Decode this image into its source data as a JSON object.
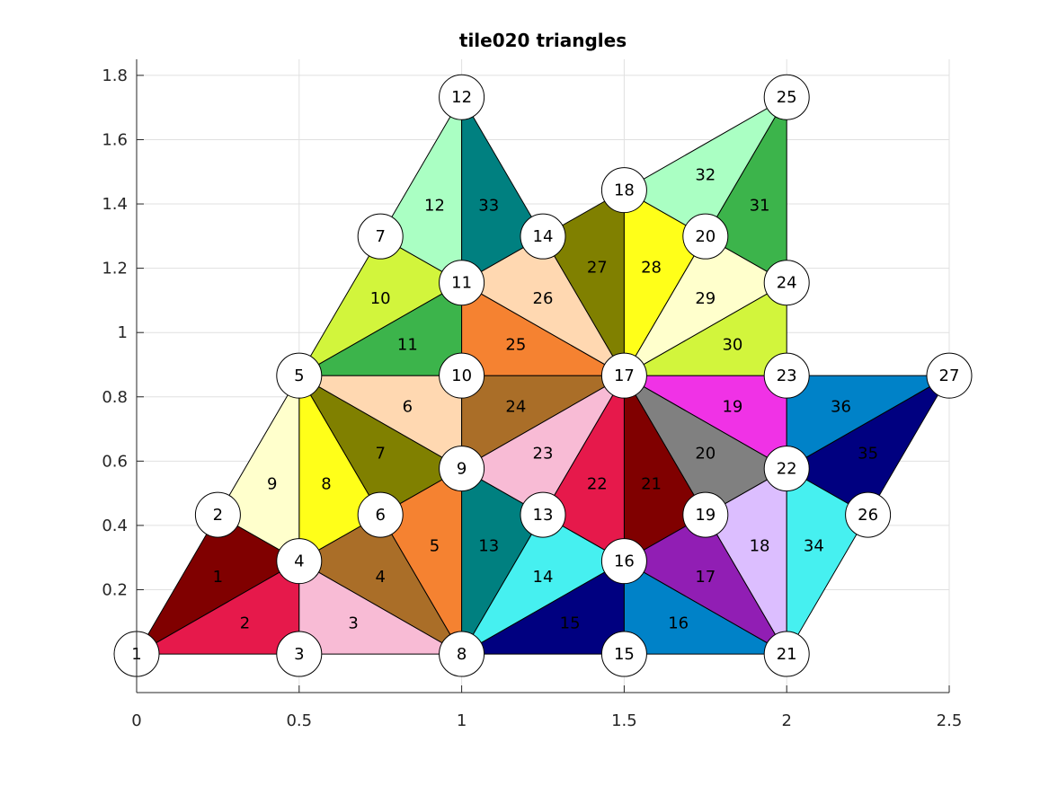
{
  "title": "tile020 triangles",
  "chart_data": {
    "type": "triangle-mesh",
    "title": "tile020 triangles",
    "xlim": [
      0,
      2.5
    ],
    "ylim": [
      -0.12,
      1.85
    ],
    "xticks": [
      0,
      0.5,
      1,
      1.5,
      2,
      2.5
    ],
    "xtick_labels": [
      "0",
      "0.5",
      "1",
      "1.5",
      "2",
      "2.5"
    ],
    "yticks": [
      0.2,
      0.4,
      0.6,
      0.8,
      1,
      1.2,
      1.4,
      1.6,
      1.8
    ],
    "ytick_labels": [
      "0.2",
      "0.4",
      "0.6",
      "0.8",
      "1",
      "1.2",
      "1.4",
      "1.6",
      "1.8"
    ],
    "grid": true,
    "nodes": [
      {
        "id": "1",
        "x": 0.0,
        "y": 0.0
      },
      {
        "id": "2",
        "x": 0.25,
        "y": 0.433
      },
      {
        "id": "3",
        "x": 0.5,
        "y": 0.0
      },
      {
        "id": "4",
        "x": 0.5,
        "y": 0.289
      },
      {
        "id": "5",
        "x": 0.5,
        "y": 0.866
      },
      {
        "id": "6",
        "x": 0.75,
        "y": 0.433
      },
      {
        "id": "7",
        "x": 0.75,
        "y": 1.299
      },
      {
        "id": "8",
        "x": 1.0,
        "y": 0.0
      },
      {
        "id": "9",
        "x": 1.0,
        "y": 0.577
      },
      {
        "id": "10",
        "x": 1.0,
        "y": 0.866
      },
      {
        "id": "11",
        "x": 1.0,
        "y": 1.155
      },
      {
        "id": "12",
        "x": 1.0,
        "y": 1.732
      },
      {
        "id": "13",
        "x": 1.25,
        "y": 0.433
      },
      {
        "id": "14",
        "x": 1.25,
        "y": 1.299
      },
      {
        "id": "15",
        "x": 1.5,
        "y": 0.0
      },
      {
        "id": "16",
        "x": 1.5,
        "y": 0.289
      },
      {
        "id": "17",
        "x": 1.5,
        "y": 0.866
      },
      {
        "id": "18",
        "x": 1.5,
        "y": 1.443
      },
      {
        "id": "19",
        "x": 1.75,
        "y": 0.433
      },
      {
        "id": "20",
        "x": 1.75,
        "y": 1.299
      },
      {
        "id": "21",
        "x": 2.0,
        "y": 0.0
      },
      {
        "id": "22",
        "x": 2.0,
        "y": 0.577
      },
      {
        "id": "23",
        "x": 2.0,
        "y": 0.866
      },
      {
        "id": "24",
        "x": 2.0,
        "y": 1.155
      },
      {
        "id": "25",
        "x": 2.0,
        "y": 1.732
      },
      {
        "id": "26",
        "x": 2.25,
        "y": 0.433
      },
      {
        "id": "27",
        "x": 2.5,
        "y": 0.866
      }
    ],
    "triangles": [
      {
        "id": "1",
        "v": [
          "1",
          "2",
          "4"
        ],
        "color": "#800000"
      },
      {
        "id": "2",
        "v": [
          "1",
          "4",
          "3"
        ],
        "color": "#e6194b"
      },
      {
        "id": "3",
        "v": [
          "3",
          "4",
          "8"
        ],
        "color": "#f8bbd5"
      },
      {
        "id": "4",
        "v": [
          "4",
          "6",
          "8"
        ],
        "color": "#aa6e28"
      },
      {
        "id": "5",
        "v": [
          "6",
          "9",
          "8"
        ],
        "color": "#f58231"
      },
      {
        "id": "6",
        "v": [
          "5",
          "10",
          "9"
        ],
        "color": "#ffd8b1"
      },
      {
        "id": "7",
        "v": [
          "5",
          "9",
          "6"
        ],
        "color": "#808000"
      },
      {
        "id": "8",
        "v": [
          "5",
          "6",
          "4"
        ],
        "color": "#ffff19"
      },
      {
        "id": "9",
        "v": [
          "5",
          "4",
          "2"
        ],
        "color": "#ffffcc"
      },
      {
        "id": "10",
        "v": [
          "5",
          "7",
          "11"
        ],
        "color": "#d2f53c"
      },
      {
        "id": "11",
        "v": [
          "5",
          "11",
          "10"
        ],
        "color": "#3cb44b"
      },
      {
        "id": "12",
        "v": [
          "7",
          "12",
          "11"
        ],
        "color": "#aaffc3"
      },
      {
        "id": "13",
        "v": [
          "8",
          "9",
          "13"
        ],
        "color": "#008080"
      },
      {
        "id": "14",
        "v": [
          "8",
          "13",
          "16"
        ],
        "color": "#46f0f0"
      },
      {
        "id": "15",
        "v": [
          "8",
          "16",
          "15"
        ],
        "color": "#000080"
      },
      {
        "id": "16",
        "v": [
          "15",
          "16",
          "21"
        ],
        "color": "#0082c8"
      },
      {
        "id": "17",
        "v": [
          "16",
          "19",
          "21"
        ],
        "color": "#911eb4"
      },
      {
        "id": "18",
        "v": [
          "19",
          "22",
          "21"
        ],
        "color": "#dcbeff"
      },
      {
        "id": "19",
        "v": [
          "17",
          "23",
          "22"
        ],
        "color": "#f032e6"
      },
      {
        "id": "20",
        "v": [
          "17",
          "22",
          "19"
        ],
        "color": "#808080"
      },
      {
        "id": "21",
        "v": [
          "17",
          "19",
          "16"
        ],
        "color": "#800000"
      },
      {
        "id": "22",
        "v": [
          "17",
          "16",
          "13"
        ],
        "color": "#e6194b"
      },
      {
        "id": "23",
        "v": [
          "17",
          "13",
          "9"
        ],
        "color": "#f8bbd5"
      },
      {
        "id": "24",
        "v": [
          "17",
          "9",
          "10"
        ],
        "color": "#aa6e28"
      },
      {
        "id": "25",
        "v": [
          "17",
          "10",
          "11"
        ],
        "color": "#f58231"
      },
      {
        "id": "26",
        "v": [
          "17",
          "11",
          "14"
        ],
        "color": "#ffd8b1"
      },
      {
        "id": "27",
        "v": [
          "17",
          "14",
          "18"
        ],
        "color": "#808000"
      },
      {
        "id": "28",
        "v": [
          "17",
          "18",
          "20"
        ],
        "color": "#ffff19"
      },
      {
        "id": "29",
        "v": [
          "17",
          "20",
          "24"
        ],
        "color": "#ffffcc"
      },
      {
        "id": "30",
        "v": [
          "17",
          "24",
          "23"
        ],
        "color": "#d2f53c"
      },
      {
        "id": "31",
        "v": [
          "20",
          "25",
          "24"
        ],
        "color": "#3cb44b"
      },
      {
        "id": "32",
        "v": [
          "18",
          "25",
          "20"
        ],
        "color": "#aaffc3"
      },
      {
        "id": "33",
        "v": [
          "11",
          "12",
          "14"
        ],
        "color": "#008080"
      },
      {
        "id": "34",
        "v": [
          "21",
          "22",
          "26"
        ],
        "color": "#46f0f0"
      },
      {
        "id": "35",
        "v": [
          "22",
          "27",
          "26"
        ],
        "color": "#000080"
      },
      {
        "id": "36",
        "v": [
          "22",
          "23",
          "27"
        ],
        "color": "#0082c8"
      }
    ]
  }
}
